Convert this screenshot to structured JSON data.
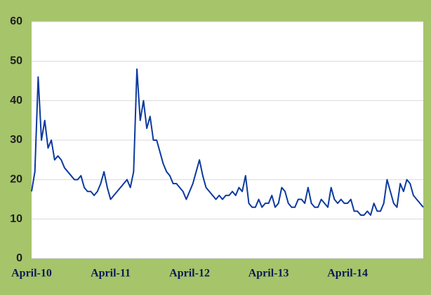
{
  "chart_data": {
    "type": "line",
    "categories": [
      "April-10",
      null,
      null,
      null,
      null,
      null,
      null,
      null,
      null,
      null,
      null,
      null,
      null,
      null,
      null,
      null,
      null,
      null,
      null,
      null,
      null,
      null,
      null,
      null,
      "April-11",
      null,
      null,
      null,
      null,
      null,
      null,
      null,
      null,
      null,
      null,
      null,
      null,
      null,
      null,
      null,
      null,
      null,
      null,
      null,
      null,
      null,
      null,
      null,
      "April-12",
      null,
      null,
      null,
      null,
      null,
      null,
      null,
      null,
      null,
      null,
      null,
      null,
      null,
      null,
      null,
      null,
      null,
      null,
      null,
      null,
      null,
      null,
      null,
      "April-13",
      null,
      null,
      null,
      null,
      null,
      null,
      null,
      null,
      null,
      null,
      null,
      null,
      null,
      null,
      null,
      null,
      null,
      null,
      null,
      null,
      null,
      null,
      null,
      "April-14",
      null,
      null,
      null,
      null,
      null,
      null,
      null,
      null,
      null,
      null,
      null,
      null,
      null,
      null,
      null,
      null,
      null,
      null,
      null,
      null,
      null,
      null,
      null
    ],
    "series": [
      {
        "color": "#0b3a9e",
        "values": [
          17,
          22,
          46,
          30,
          35,
          28,
          30,
          25,
          26,
          25,
          23,
          22,
          21,
          20,
          20,
          21,
          18,
          17,
          17,
          16,
          17,
          19,
          22,
          18,
          15,
          16,
          17,
          18,
          19,
          20,
          18,
          22,
          48,
          35,
          40,
          33,
          36,
          30,
          30,
          27,
          24,
          22,
          21,
          19,
          19,
          18,
          17,
          15,
          17,
          19,
          22,
          25,
          21,
          18,
          17,
          16,
          15,
          16,
          15,
          16,
          16,
          17,
          16,
          18,
          17,
          21,
          14,
          13,
          13,
          15,
          13,
          14,
          14,
          16,
          13,
          14,
          18,
          17,
          14,
          13,
          13,
          15,
          15,
          14,
          18,
          14,
          13,
          13,
          15,
          14,
          13,
          18,
          15,
          14,
          15,
          14,
          14,
          15,
          12,
          12,
          11,
          11,
          12,
          11,
          14,
          12,
          12,
          14,
          20,
          17,
          14,
          13,
          19,
          17,
          20,
          19,
          16,
          15,
          14,
          13
        ]
      }
    ],
    "ylim": [
      0,
      60
    ],
    "yticks": [
      0,
      10,
      20,
      30,
      40,
      50,
      60
    ],
    "grid": true
  }
}
